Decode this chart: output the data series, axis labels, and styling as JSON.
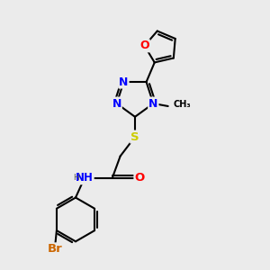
{
  "bg_color": "#ebebeb",
  "bond_color": "#000000",
  "bond_width": 1.5,
  "atom_colors": {
    "N": "#0000ff",
    "O": "#ff0000",
    "S": "#cccc00",
    "Br": "#cc6600",
    "C": "#000000",
    "H": "#555555"
  },
  "font_size": 8.5,
  "title": ""
}
